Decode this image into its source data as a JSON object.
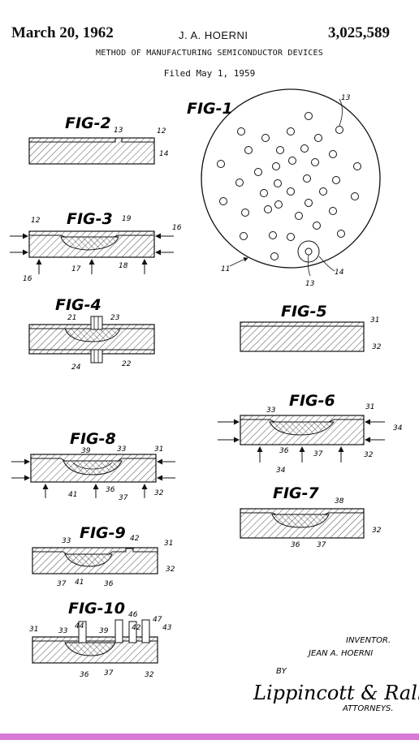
{
  "header": {
    "date": "March 20, 1962",
    "inventor": "J. A. HOERNI",
    "patent_number": "3,025,589",
    "title": "METHOD OF MANUFACTURING SEMICONDUCTOR DEVICES",
    "filed": "Filed May 1, 1959"
  },
  "figures": {
    "fig1": "FIG-1",
    "fig2": "FIG-2",
    "fig3": "FIG-3",
    "fig4": "FIG-4",
    "fig5": "FIG-5",
    "fig6": "FIG-6",
    "fig7": "FIG-7",
    "fig8": "FIG-8",
    "fig9": "FIG-9",
    "fig10": "FIG-10"
  },
  "refs": {
    "fig1": [
      "13",
      "11",
      "13",
      "14"
    ],
    "fig2": [
      "13",
      "12",
      "14"
    ],
    "fig3": [
      "12",
      "19",
      "16",
      "16",
      "17",
      "18"
    ],
    "fig4": [
      "21",
      "23",
      "24",
      "22"
    ],
    "fig5": [
      "31",
      "32"
    ],
    "fig6": [
      "33",
      "31",
      "34",
      "36",
      "37",
      "34",
      "32"
    ],
    "fig7": [
      "38",
      "32",
      "36",
      "37"
    ],
    "fig8": [
      "39",
      "33",
      "31",
      "41",
      "36",
      "37",
      "32"
    ],
    "fig9": [
      "33",
      "42",
      "31",
      "32",
      "37",
      "41",
      "36"
    ],
    "fig10": [
      "31",
      "33",
      "44",
      "39",
      "46",
      "42",
      "47",
      "43",
      "36",
      "37",
      "32"
    ]
  },
  "signature": {
    "inventor_label": "INVENTOR.",
    "inventor_name": "JEAN A. HOERNI",
    "by": "BY",
    "attorney_signature": "Lippincott & Ralls",
    "attorneys_label": "ATTORNEYS."
  },
  "colors": {
    "ink": "#111111",
    "paper": "#ffffff",
    "bottom_bar": "#d67ad6"
  }
}
